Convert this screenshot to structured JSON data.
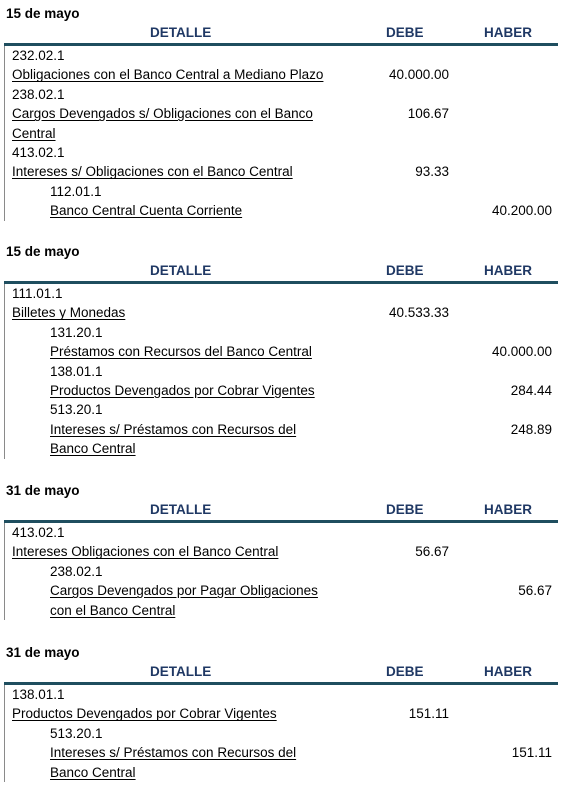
{
  "header": {
    "detalle": "DETALLE",
    "debe": "DEBE",
    "haber": "HABER"
  },
  "entries": [
    {
      "date": "15 de mayo",
      "lines": [
        {
          "type": "code",
          "level": 0,
          "text": "232.02.1"
        },
        {
          "type": "acct",
          "level": 0,
          "text": "Obligaciones con el Banco Central a Mediano Plazo",
          "debe": "40.000.00"
        },
        {
          "type": "code",
          "level": 0,
          "text": "238.02.1"
        },
        {
          "type": "acct",
          "level": 0,
          "text": "Cargos Devengados s/ Obligaciones con el Banco",
          "debe": "106.67"
        },
        {
          "type": "acct",
          "level": 0,
          "text": "Central"
        },
        {
          "type": "code",
          "level": 0,
          "text": "413.02.1"
        },
        {
          "type": "acct",
          "level": 0,
          "text": "Intereses s/ Obligaciones con el Banco Central",
          "debe": "93.33"
        },
        {
          "type": "code",
          "level": 1,
          "text": "112.01.1"
        },
        {
          "type": "acct",
          "level": 1,
          "text": "Banco Central Cuenta Corriente",
          "haber": "40.200.00"
        }
      ]
    },
    {
      "date": "15 de mayo",
      "lines": [
        {
          "type": "code",
          "level": 0,
          "text": "111.01.1"
        },
        {
          "type": "acct",
          "level": 0,
          "text": "Billetes y Monedas",
          "debe": "40.533.33"
        },
        {
          "type": "code",
          "level": 1,
          "text": "131.20.1"
        },
        {
          "type": "acct",
          "level": 1,
          "text": "Préstamos con Recursos del Banco Central",
          "haber": "40.000.00"
        },
        {
          "type": "code",
          "level": 1,
          "text": "138.01.1"
        },
        {
          "type": "acct",
          "level": 1,
          "text": "Productos Devengados por Cobrar Vigentes",
          "haber": "284.44"
        },
        {
          "type": "code",
          "level": 1,
          "text": "513.20.1"
        },
        {
          "type": "acct",
          "level": 1,
          "text": "Intereses s/ Préstamos con Recursos del",
          "haber": "248.89"
        },
        {
          "type": "acct",
          "level": 1,
          "text": "Banco Central"
        }
      ]
    },
    {
      "date": "31 de mayo",
      "lines": [
        {
          "type": "code",
          "level": 0,
          "text": "413.02.1"
        },
        {
          "type": "acct",
          "level": 0,
          "text": "Intereses Obligaciones con el Banco Central",
          "debe": "56.67"
        },
        {
          "type": "code",
          "level": 1,
          "text": "238.02.1"
        },
        {
          "type": "acct",
          "level": 1,
          "text": "Cargos Devengados por Pagar Obligaciones",
          "haber": "56.67"
        },
        {
          "type": "acct",
          "level": 1,
          "text": "con el Banco Central"
        }
      ]
    },
    {
      "date": "31 de mayo",
      "lines": [
        {
          "type": "code",
          "level": 0,
          "text": "138.01.1"
        },
        {
          "type": "acct",
          "level": 0,
          "text": "Productos Devengados por Cobrar Vigentes",
          "debe": "151.11"
        },
        {
          "type": "code",
          "level": 1,
          "text": "513.20.1"
        },
        {
          "type": "acct",
          "level": 1,
          "text": "Intereses s/ Préstamos con Recursos del",
          "haber": "151.11"
        },
        {
          "type": "acct",
          "level": 1,
          "text": "Banco Central"
        }
      ]
    }
  ]
}
